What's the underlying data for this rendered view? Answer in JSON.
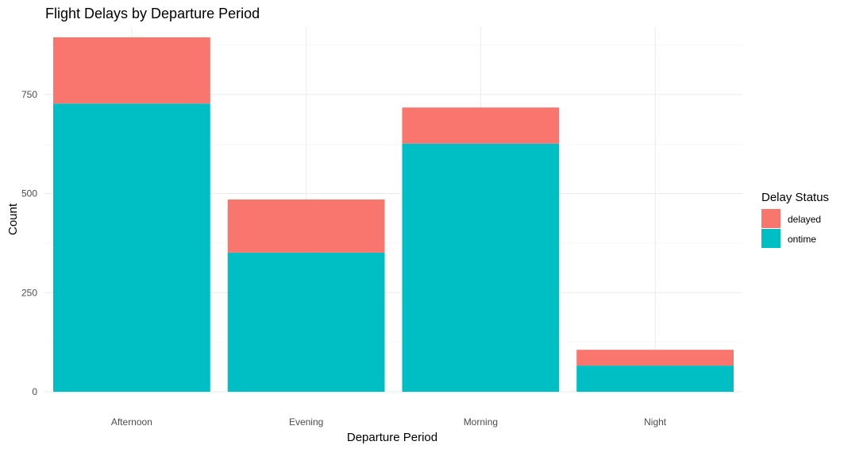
{
  "chart_data": {
    "type": "bar",
    "stacked": true,
    "title": "Flight Delays by Departure Period",
    "xlabel": "Departure Period",
    "ylabel": "Count",
    "categories": [
      "Afternoon",
      "Evening",
      "Morning",
      "Night"
    ],
    "series": [
      {
        "name": "ontime",
        "color": "#00BFC4",
        "values": [
          727,
          351,
          626,
          66
        ]
      },
      {
        "name": "delayed",
        "color": "#F8766D",
        "values": [
          167,
          134,
          91,
          40
        ]
      }
    ],
    "ylim": [
      0,
      920
    ],
    "yticks": [
      0,
      250,
      500,
      750
    ],
    "grid": true,
    "legend": {
      "title": "Delay Status",
      "position": "right",
      "entries": [
        {
          "label": "delayed",
          "color": "#F8766D"
        },
        {
          "label": "ontime",
          "color": "#00BFC4"
        }
      ]
    }
  }
}
